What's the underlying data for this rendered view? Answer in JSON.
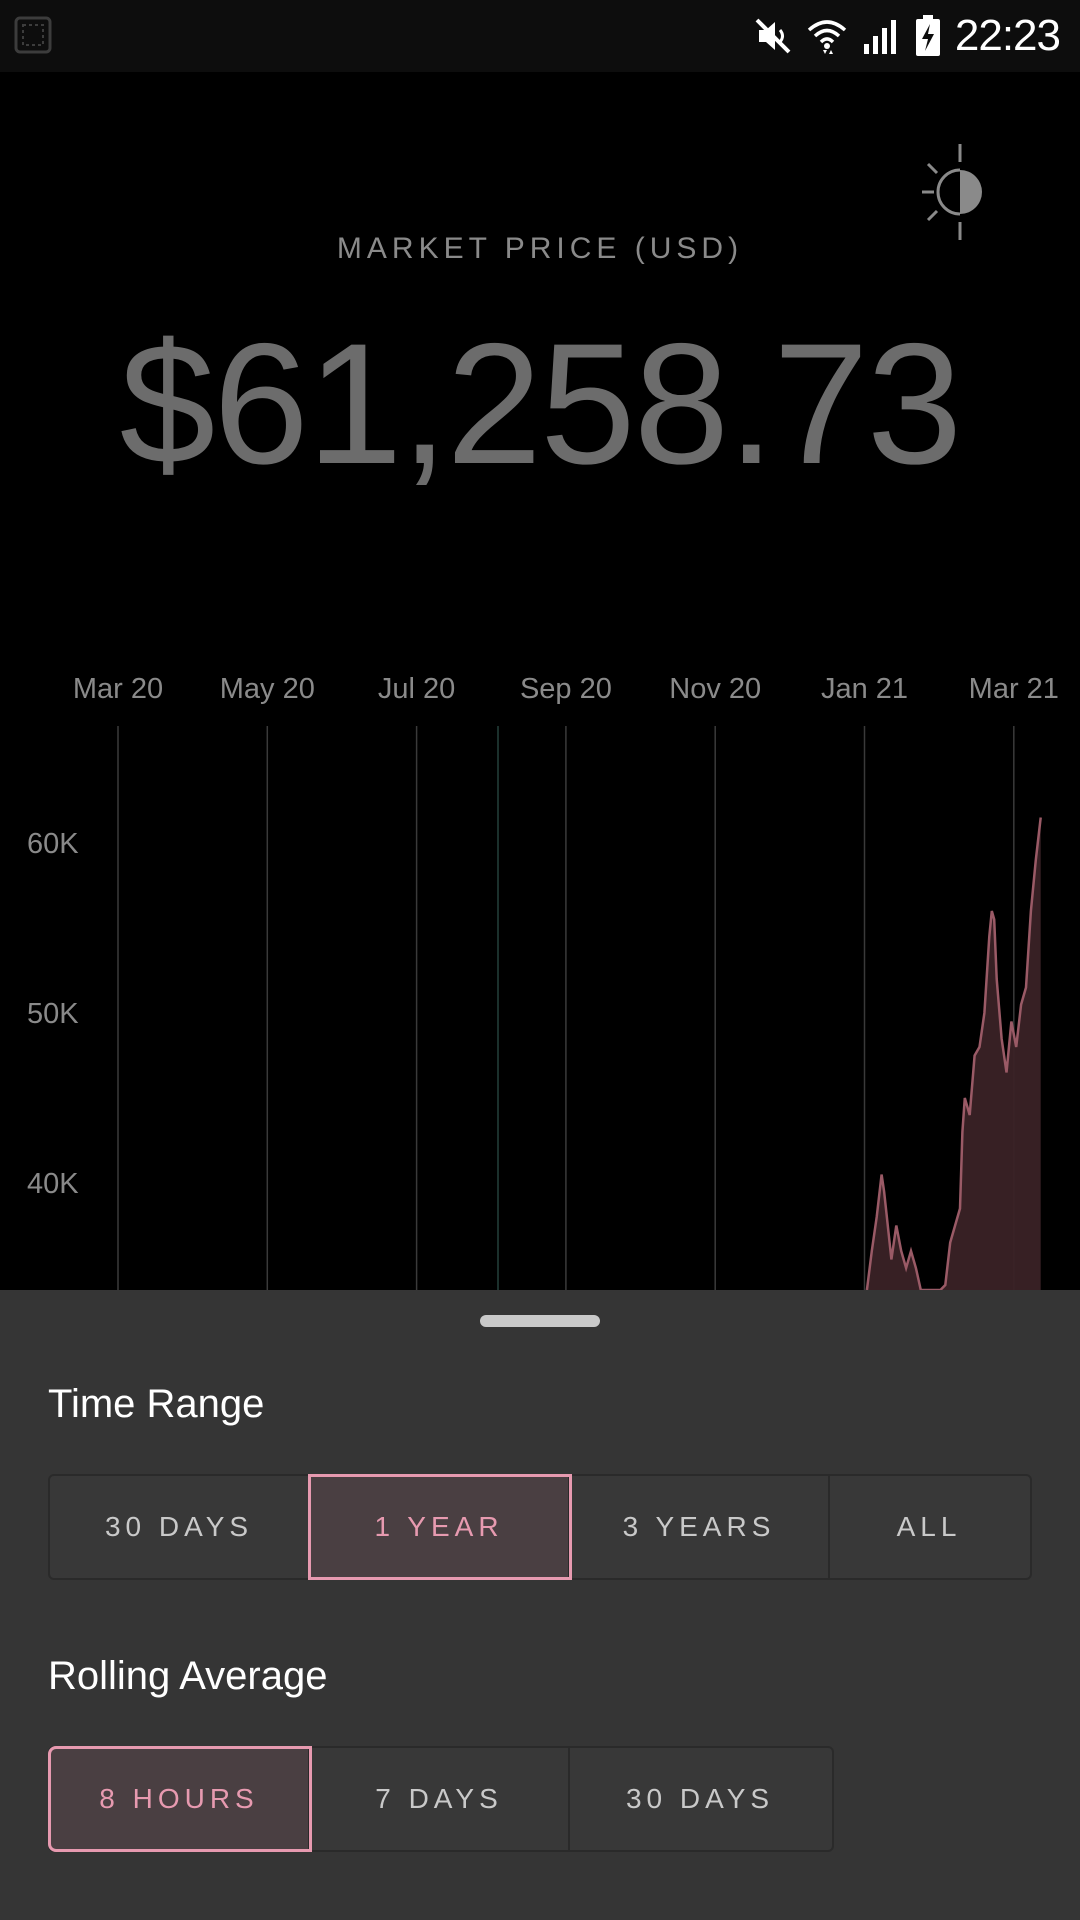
{
  "status_bar": {
    "time": "22:23",
    "icons": [
      "screenshot-icon",
      "mute-icon",
      "wifi-icon",
      "signal-icon",
      "battery-charging-icon"
    ]
  },
  "header": {
    "market_label": "MARKET PRICE (USD)",
    "price": "$61,258.73",
    "theme_toggle_icon": "brightness-icon"
  },
  "chart_data": {
    "type": "area",
    "x_tick_labels": [
      "Mar 20",
      "May 20",
      "Jul 20",
      "Sep 20",
      "Nov 20",
      "Jan 21",
      "Mar 21"
    ],
    "y_tick_labels": [
      "60K",
      "50K",
      "40K"
    ],
    "y_ticks": [
      60000,
      50000,
      40000
    ],
    "ylim": [
      33500,
      66000
    ],
    "grid": "vertical",
    "x": [
      "2021-01-01",
      "2021-01-03",
      "2021-01-05",
      "2021-01-07",
      "2021-01-08",
      "2021-01-09",
      "2021-01-11",
      "2021-01-13",
      "2021-01-15",
      "2021-01-17",
      "2021-01-19",
      "2021-01-21",
      "2021-01-23",
      "2021-01-25",
      "2021-01-27",
      "2021-01-29",
      "2021-01-31",
      "2021-02-02",
      "2021-02-04",
      "2021-02-06",
      "2021-02-08",
      "2021-02-09",
      "2021-02-10",
      "2021-02-12",
      "2021-02-14",
      "2021-02-16",
      "2021-02-18",
      "2021-02-20",
      "2021-02-21",
      "2021-02-22",
      "2021-02-23",
      "2021-02-25",
      "2021-02-27",
      "2021-03-01",
      "2021-03-03",
      "2021-03-05",
      "2021-03-07",
      "2021-03-09",
      "2021-03-11",
      "2021-03-13"
    ],
    "values": [
      32000,
      36000,
      38000,
      40500,
      39500,
      38200,
      35500,
      37500,
      36000,
      35000,
      36000,
      35000,
      32000,
      33000,
      31000,
      32500,
      33500,
      34000,
      36500,
      37500,
      38500,
      43000,
      45000,
      44000,
      47500,
      48000,
      50000,
      54500,
      56000,
      55500,
      52000,
      48500,
      46500,
      49500,
      48000,
      50500,
      51500,
      56000,
      59000,
      61500
    ],
    "color": "#9a5a66",
    "fill": "#3a2226"
  },
  "sheet": {
    "time_range": {
      "title": "Time Range",
      "options": [
        "30 DAYS",
        "1 YEAR",
        "3 YEARS",
        "ALL"
      ],
      "selected_index": 1
    },
    "rolling_average": {
      "title": "Rolling Average",
      "options": [
        "8 HOURS",
        "7 DAYS",
        "30 DAYS"
      ],
      "selected_index": 0
    }
  },
  "colors": {
    "accent": "#e79ab0",
    "sheet_bg": "#353535",
    "price_text": "#6c6c6c"
  }
}
